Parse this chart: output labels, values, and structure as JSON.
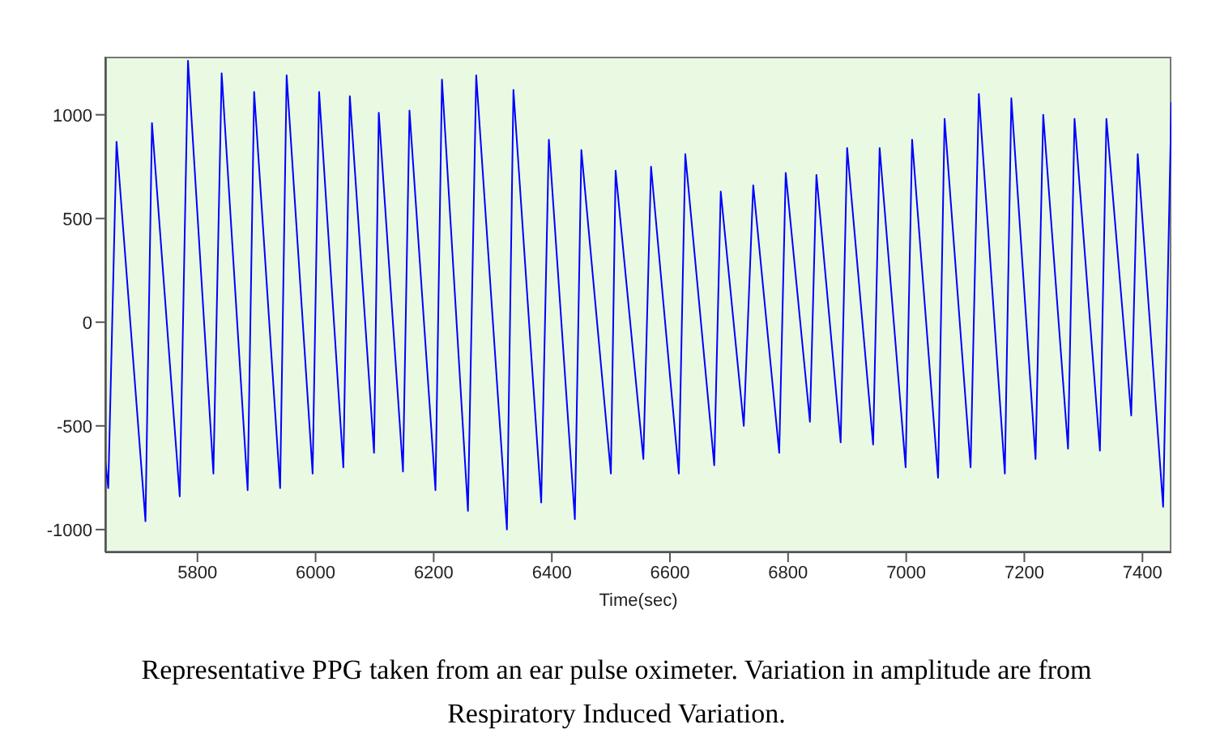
{
  "chart_data": {
    "type": "line",
    "xlabel": "Time(sec)",
    "annotations": [
      "Representative PPG taken from an ear pulse oximeter. Variation in amplitude are from Respiratory Induced Variation."
    ],
    "x": [
      5644,
      5649,
      5663,
      5712,
      5723,
      5770,
      5784,
      5827,
      5841,
      5885,
      5896,
      5940,
      5951,
      5995,
      6006,
      6047,
      6058,
      6099,
      6107,
      6148,
      6159,
      6203,
      6214,
      6258,
      6272,
      6324,
      6335,
      6382,
      6395,
      6439,
      6450,
      6500,
      6508,
      6555,
      6568,
      6615,
      6626,
      6675,
      6686,
      6725,
      6741,
      6785,
      6796,
      6837,
      6848,
      6889,
      6900,
      6944,
      6955,
      6999,
      7010,
      7054,
      7065,
      7109,
      7123,
      7167,
      7178,
      7219,
      7232,
      7274,
      7285,
      7328,
      7339,
      7381,
      7392,
      7435,
      7449
    ],
    "series": [
      {
        "color": "#0000ff",
        "values": [
          -670,
          -800,
          870,
          -960,
          960,
          -840,
          1260,
          -730,
          1200,
          -810,
          1110,
          -800,
          1190,
          -730,
          1110,
          -700,
          1090,
          -630,
          1010,
          -720,
          1020,
          -810,
          1170,
          -910,
          1190,
          -1000,
          1120,
          -870,
          880,
          -950,
          830,
          -730,
          730,
          -660,
          750,
          -730,
          810,
          -690,
          630,
          -500,
          660,
          -630,
          720,
          -480,
          710,
          -580,
          840,
          -590,
          840,
          -700,
          880,
          -750,
          980,
          -700,
          1100,
          -730,
          1080,
          -660,
          1000,
          -610,
          980,
          -620,
          980,
          -450,
          810,
          -890,
          1060
        ]
      }
    ],
    "xlim": [
      5644,
      7449
    ],
    "xticks": [
      5800,
      6000,
      6200,
      6400,
      6600,
      6800,
      7000,
      7200,
      7400
    ],
    "ylim": [
      -1110,
      1280
    ],
    "yticks": [
      -1000,
      -500,
      0,
      500,
      1000
    ],
    "grid": false,
    "legend": false,
    "marker": "none",
    "line_style": "solid"
  }
}
